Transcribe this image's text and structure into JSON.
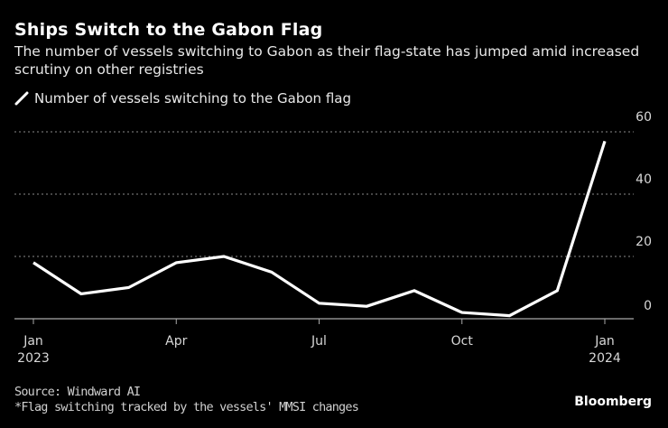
{
  "header": {
    "title": "Ships Switch to the Gabon Flag",
    "subtitle": "The number of vessels switching to Gabon as their flag-state has jumped amid increased scrutiny on other registries"
  },
  "footer": {
    "source": "Source: Windward AI",
    "note": "*Flag switching tracked by the vessels' MMSI changes",
    "brand": "Bloomberg"
  },
  "colors": {
    "background": "#000000",
    "line": "#ffffff",
    "grid": "#8a8a8a",
    "axis": "#aaaaaa"
  },
  "chart_data": {
    "type": "line",
    "title": "Ships Switch to the Gabon Flag",
    "subtitle": "The number of vessels switching to Gabon as their flag-state has jumped amid increased scrutiny on other registries",
    "xlabel": "",
    "ylabel": "",
    "x": [
      "2023-01",
      "2023-02",
      "2023-03",
      "2023-04",
      "2023-05",
      "2023-06",
      "2023-07",
      "2023-08",
      "2023-09",
      "2023-10",
      "2023-11",
      "2023-12",
      "2024-01"
    ],
    "series": [
      {
        "name": "Number of vessels switching to the Gabon flag",
        "values": [
          18,
          8,
          10,
          18,
          20,
          15,
          5,
          4,
          9,
          2,
          1,
          9,
          57
        ]
      }
    ],
    "x_ticks": [
      {
        "index": 0,
        "line1": "Jan",
        "line2": "2023"
      },
      {
        "index": 3,
        "line1": "Apr",
        "line2": ""
      },
      {
        "index": 6,
        "line1": "Jul",
        "line2": ""
      },
      {
        "index": 9,
        "line1": "Oct",
        "line2": ""
      },
      {
        "index": 12,
        "line1": "Jan",
        "line2": "2024"
      }
    ],
    "y_ticks": [
      0,
      20,
      40,
      60
    ],
    "ylim": [
      0,
      60
    ],
    "grid": true,
    "y_axis_side": "right",
    "legend": "top-left"
  }
}
